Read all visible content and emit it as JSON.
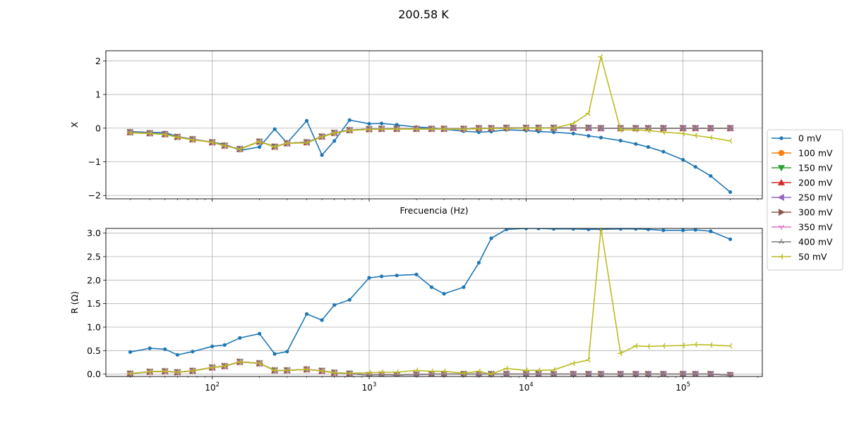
{
  "title": "200.58 K",
  "chart_data": [
    {
      "type": "line",
      "xscale": "log",
      "xlim": [
        21,
        320000
      ],
      "ylim": [
        -2.1,
        2.3
      ],
      "xlabel": "Frecuencia (Hz)",
      "ylabel": "X",
      "grid": true,
      "y_ticks": [
        -2,
        -1,
        0,
        1,
        2
      ],
      "y_tick_labels": [
        "−2",
        "−1",
        "0",
        "1",
        "2"
      ],
      "x_ticks": [
        100,
        1000,
        10000,
        100000
      ],
      "x_tick_labels": [
        {
          "base": "10",
          "exp": "2"
        },
        {
          "base": "10",
          "exp": "3"
        },
        {
          "base": "10",
          "exp": "4"
        },
        {
          "base": "10",
          "exp": "5"
        }
      ],
      "x": [
        30,
        40,
        50,
        60,
        75,
        100,
        120,
        150,
        200,
        250,
        300,
        400,
        500,
        600,
        750,
        1000,
        1200,
        1500,
        2000,
        2500,
        3000,
        4000,
        5000,
        6000,
        7500,
        10000,
        12000,
        15000,
        20000,
        25000,
        30000,
        40000,
        50000,
        60000,
        75000,
        100000,
        120000,
        150000,
        200000
      ],
      "series": [
        {
          "name": "0 mV",
          "color": "#1f77b4",
          "marker": "dot",
          "values": [
            -0.1,
            -0.13,
            -0.13,
            -0.25,
            -0.33,
            -0.42,
            -0.48,
            -0.66,
            -0.56,
            -0.03,
            -0.44,
            0.22,
            -0.8,
            -0.38,
            0.24,
            0.13,
            0.14,
            0.1,
            0.03,
            0.01,
            -0.03,
            -0.09,
            -0.12,
            -0.1,
            -0.05,
            -0.07,
            -0.1,
            -0.12,
            -0.16,
            -0.23,
            -0.28,
            -0.37,
            -0.47,
            -0.56,
            -0.7,
            -0.94,
            -1.15,
            -1.42,
            -1.9
          ]
        },
        {
          "name": "100 mV",
          "color": "#ff7f0e",
          "marker": "circle",
          "values": [
            -0.12,
            -0.15,
            -0.18,
            -0.26,
            -0.33,
            -0.42,
            -0.52,
            -0.62,
            -0.4,
            -0.55,
            -0.45,
            -0.42,
            -0.25,
            -0.14,
            -0.06,
            -0.03,
            -0.02,
            -0.02,
            -0.02,
            -0.02,
            -0.02,
            -0.02,
            0.0,
            0.0,
            0.01,
            0.01,
            0.01,
            0.01,
            0.01,
            0.01,
            0.0,
            0.0,
            0.0,
            0.0,
            0.0,
            0.0,
            0.0,
            0.0,
            0.0
          ]
        },
        {
          "name": "150 mV",
          "color": "#2ca02c",
          "marker": "triangle-down",
          "values": [
            -0.12,
            -0.15,
            -0.18,
            -0.26,
            -0.33,
            -0.42,
            -0.52,
            -0.62,
            -0.4,
            -0.55,
            -0.45,
            -0.42,
            -0.25,
            -0.14,
            -0.06,
            -0.03,
            -0.02,
            -0.02,
            -0.02,
            -0.02,
            -0.02,
            -0.02,
            0.0,
            0.0,
            0.01,
            0.01,
            0.01,
            0.01,
            0.01,
            0.01,
            0.0,
            0.0,
            0.0,
            0.0,
            0.0,
            0.0,
            0.0,
            0.0,
            0.0
          ]
        },
        {
          "name": "200 mV",
          "color": "#d62728",
          "marker": "triangle-up",
          "values": [
            -0.12,
            -0.15,
            -0.18,
            -0.26,
            -0.33,
            -0.42,
            -0.52,
            -0.62,
            -0.4,
            -0.55,
            -0.45,
            -0.42,
            -0.25,
            -0.14,
            -0.06,
            -0.03,
            -0.02,
            -0.02,
            -0.02,
            -0.02,
            -0.02,
            -0.02,
            0.0,
            0.0,
            0.01,
            0.01,
            0.01,
            0.01,
            0.01,
            0.01,
            0.0,
            0.0,
            0.0,
            0.0,
            0.0,
            0.0,
            0.0,
            0.0,
            0.0
          ]
        },
        {
          "name": "250 mV",
          "color": "#9467bd",
          "marker": "triangle-left",
          "values": [
            -0.12,
            -0.15,
            -0.18,
            -0.26,
            -0.33,
            -0.42,
            -0.52,
            -0.62,
            -0.4,
            -0.55,
            -0.45,
            -0.42,
            -0.25,
            -0.14,
            -0.06,
            -0.03,
            -0.02,
            -0.02,
            -0.02,
            -0.02,
            -0.02,
            -0.02,
            0.0,
            0.0,
            0.01,
            0.01,
            0.01,
            0.01,
            0.01,
            0.01,
            0.0,
            0.0,
            0.0,
            0.0,
            0.0,
            0.0,
            0.0,
            0.0,
            0.0
          ]
        },
        {
          "name": "300 mV",
          "color": "#8c564b",
          "marker": "triangle-right",
          "values": [
            -0.12,
            -0.15,
            -0.18,
            -0.26,
            -0.33,
            -0.42,
            -0.52,
            -0.62,
            -0.4,
            -0.55,
            -0.45,
            -0.42,
            -0.25,
            -0.14,
            -0.06,
            -0.03,
            -0.02,
            -0.02,
            -0.02,
            -0.02,
            -0.02,
            -0.02,
            0.0,
            0.0,
            0.01,
            0.01,
            0.01,
            0.01,
            0.01,
            0.01,
            0.0,
            0.0,
            0.0,
            0.0,
            0.0,
            0.0,
            0.0,
            0.0,
            0.0
          ]
        },
        {
          "name": "350 mV",
          "color": "#e377c2",
          "marker": "tri-down",
          "values": [
            -0.12,
            -0.15,
            -0.18,
            -0.26,
            -0.33,
            -0.42,
            -0.52,
            -0.62,
            -0.4,
            -0.55,
            -0.45,
            -0.42,
            -0.25,
            -0.14,
            -0.06,
            -0.03,
            -0.02,
            -0.02,
            -0.02,
            -0.02,
            -0.02,
            -0.02,
            0.0,
            0.0,
            0.01,
            0.01,
            0.01,
            0.01,
            0.01,
            0.01,
            0.0,
            0.0,
            0.0,
            0.0,
            0.0,
            0.0,
            0.0,
            0.0,
            0.0
          ]
        },
        {
          "name": "400 mV",
          "color": "#7f7f7f",
          "marker": "tri-up",
          "values": [
            -0.12,
            -0.15,
            -0.18,
            -0.26,
            -0.33,
            -0.42,
            -0.52,
            -0.62,
            -0.4,
            -0.55,
            -0.45,
            -0.42,
            -0.25,
            -0.14,
            -0.06,
            -0.03,
            -0.02,
            -0.02,
            -0.02,
            -0.02,
            -0.02,
            -0.02,
            0.0,
            0.0,
            0.01,
            0.01,
            0.01,
            0.01,
            0.01,
            0.01,
            0.0,
            0.0,
            0.0,
            0.0,
            0.0,
            0.0,
            0.0,
            0.0,
            0.0
          ]
        },
        {
          "name": "50 mV",
          "color": "#bcbd22",
          "marker": "tri-left",
          "values": [
            -0.14,
            -0.16,
            -0.19,
            -0.27,
            -0.35,
            -0.42,
            -0.52,
            -0.63,
            -0.4,
            -0.56,
            -0.45,
            -0.44,
            -0.26,
            -0.15,
            -0.07,
            -0.04,
            -0.03,
            -0.03,
            -0.03,
            -0.03,
            -0.03,
            -0.03,
            -0.02,
            -0.01,
            -0.01,
            0.0,
            0.0,
            0.0,
            0.14,
            0.44,
            2.12,
            -0.05,
            -0.05,
            -0.07,
            -0.12,
            -0.16,
            -0.22,
            -0.28,
            -0.38
          ]
        }
      ]
    },
    {
      "type": "line",
      "xscale": "log",
      "xlim": [
        21,
        320000
      ],
      "ylim": [
        -0.05,
        3.1
      ],
      "xlabel": "",
      "ylabel": "R (Ω)",
      "grid": true,
      "y_ticks": [
        0,
        0.5,
        1,
        1.5,
        2,
        2.5,
        3
      ],
      "y_tick_labels": [
        "0.0",
        "0.5",
        "1.0",
        "1.5",
        "2.0",
        "2.5",
        "3.0"
      ],
      "x_ticks": [
        100,
        1000,
        10000,
        100000
      ],
      "x_tick_labels": [
        {
          "base": "10",
          "exp": "2"
        },
        {
          "base": "10",
          "exp": "3"
        },
        {
          "base": "10",
          "exp": "4"
        },
        {
          "base": "10",
          "exp": "5"
        }
      ],
      "x": [
        30,
        40,
        50,
        60,
        75,
        100,
        120,
        150,
        200,
        250,
        300,
        400,
        500,
        600,
        750,
        1000,
        1200,
        1500,
        2000,
        2500,
        3000,
        4000,
        5000,
        6000,
        7500,
        10000,
        12000,
        15000,
        20000,
        25000,
        30000,
        40000,
        50000,
        60000,
        75000,
        100000,
        120000,
        150000,
        200000
      ],
      "series": [
        {
          "name": "0 mV",
          "color": "#1f77b4",
          "marker": "dot",
          "values": [
            0.47,
            0.55,
            0.53,
            0.41,
            0.48,
            0.59,
            0.62,
            0.77,
            0.86,
            0.43,
            0.48,
            1.28,
            1.15,
            1.47,
            1.58,
            2.05,
            2.08,
            2.1,
            2.12,
            1.85,
            1.71,
            1.85,
            2.37,
            2.89,
            3.08,
            3.1,
            3.1,
            3.09,
            3.09,
            3.08,
            3.08,
            3.09,
            3.09,
            3.08,
            3.06,
            3.06,
            3.07,
            3.04,
            2.87
          ]
        },
        {
          "name": "100 mV",
          "color": "#ff7f0e",
          "marker": "circle",
          "values": [
            0.01,
            0.05,
            0.06,
            0.04,
            0.07,
            0.14,
            0.17,
            0.26,
            0.23,
            0.08,
            0.08,
            0.1,
            0.07,
            0.03,
            0.01,
            -0.02,
            -0.01,
            -0.02,
            -0.01,
            0.0,
            0.0,
            0.0,
            0.0,
            0.0,
            0.0,
            0.0,
            0.0,
            0.0,
            0.0,
            0.0,
            0.0,
            0.0,
            0.0,
            0.0,
            0.0,
            0.0,
            0.0,
            0.0,
            -0.02
          ]
        },
        {
          "name": "150 mV",
          "color": "#2ca02c",
          "marker": "triangle-down",
          "values": [
            0.01,
            0.05,
            0.06,
            0.04,
            0.07,
            0.14,
            0.17,
            0.26,
            0.23,
            0.08,
            0.08,
            0.1,
            0.07,
            0.03,
            0.01,
            -0.02,
            -0.01,
            -0.02,
            -0.01,
            0.0,
            0.0,
            0.0,
            0.0,
            0.0,
            0.0,
            0.0,
            0.0,
            0.0,
            0.0,
            0.0,
            0.0,
            0.0,
            0.0,
            0.0,
            0.0,
            0.0,
            0.0,
            0.0,
            -0.02
          ]
        },
        {
          "name": "200 mV",
          "color": "#d62728",
          "marker": "triangle-up",
          "values": [
            0.01,
            0.05,
            0.06,
            0.04,
            0.07,
            0.14,
            0.17,
            0.26,
            0.23,
            0.08,
            0.08,
            0.1,
            0.07,
            0.03,
            0.01,
            -0.02,
            -0.01,
            -0.02,
            -0.01,
            0.0,
            0.0,
            0.0,
            0.0,
            0.0,
            0.0,
            0.0,
            0.0,
            0.0,
            0.0,
            0.0,
            0.0,
            0.0,
            0.0,
            0.0,
            0.0,
            0.0,
            0.0,
            0.0,
            -0.02
          ]
        },
        {
          "name": "250 mV",
          "color": "#9467bd",
          "marker": "triangle-left",
          "values": [
            0.01,
            0.05,
            0.06,
            0.04,
            0.07,
            0.14,
            0.17,
            0.26,
            0.23,
            0.08,
            0.08,
            0.1,
            0.07,
            0.03,
            0.01,
            -0.02,
            -0.01,
            -0.02,
            -0.01,
            0.0,
            0.0,
            0.0,
            0.0,
            0.0,
            0.0,
            0.0,
            0.0,
            0.0,
            0.0,
            0.0,
            0.0,
            0.0,
            0.0,
            0.0,
            0.0,
            0.0,
            0.0,
            0.0,
            -0.02
          ]
        },
        {
          "name": "300 mV",
          "color": "#8c564b",
          "marker": "triangle-right",
          "values": [
            0.01,
            0.05,
            0.06,
            0.04,
            0.07,
            0.14,
            0.17,
            0.26,
            0.23,
            0.08,
            0.08,
            0.1,
            0.07,
            0.03,
            0.01,
            -0.02,
            -0.01,
            -0.02,
            -0.01,
            0.0,
            0.0,
            0.0,
            0.0,
            0.0,
            0.0,
            0.0,
            0.0,
            0.0,
            0.0,
            0.0,
            0.0,
            0.0,
            0.0,
            0.0,
            0.0,
            0.0,
            0.0,
            0.0,
            -0.02
          ]
        },
        {
          "name": "350 mV",
          "color": "#e377c2",
          "marker": "tri-down",
          "values": [
            0.01,
            0.05,
            0.06,
            0.04,
            0.07,
            0.14,
            0.17,
            0.26,
            0.23,
            0.08,
            0.08,
            0.1,
            0.07,
            0.03,
            0.01,
            -0.02,
            -0.01,
            -0.02,
            -0.01,
            0.0,
            0.0,
            0.0,
            0.0,
            0.0,
            0.0,
            0.0,
            0.0,
            0.0,
            0.0,
            0.0,
            0.0,
            0.0,
            0.0,
            0.0,
            0.0,
            0.0,
            0.0,
            0.0,
            -0.02
          ]
        },
        {
          "name": "400 mV",
          "color": "#7f7f7f",
          "marker": "tri-up",
          "values": [
            0.01,
            0.05,
            0.06,
            0.04,
            0.07,
            0.14,
            0.17,
            0.26,
            0.23,
            0.08,
            0.08,
            0.1,
            0.07,
            0.03,
            0.01,
            -0.02,
            -0.01,
            -0.02,
            -0.01,
            0.0,
            0.0,
            0.0,
            0.0,
            0.0,
            0.0,
            0.0,
            0.0,
            0.0,
            0.0,
            0.0,
            0.0,
            0.0,
            0.0,
            0.0,
            0.0,
            0.0,
            0.0,
            0.0,
            -0.02
          ]
        },
        {
          "name": "50 mV",
          "color": "#bcbd22",
          "marker": "tri-left",
          "values": [
            0.01,
            0.05,
            0.06,
            0.04,
            0.07,
            0.14,
            0.17,
            0.26,
            0.23,
            0.08,
            0.08,
            0.1,
            0.07,
            0.03,
            0.02,
            0.03,
            0.04,
            0.04,
            0.08,
            0.06,
            0.06,
            0.02,
            0.06,
            0.0,
            0.12,
            0.08,
            0.08,
            0.09,
            0.23,
            0.3,
            3.1,
            0.44,
            0.6,
            0.59,
            0.6,
            0.61,
            0.63,
            0.62,
            0.6
          ]
        }
      ]
    }
  ]
}
